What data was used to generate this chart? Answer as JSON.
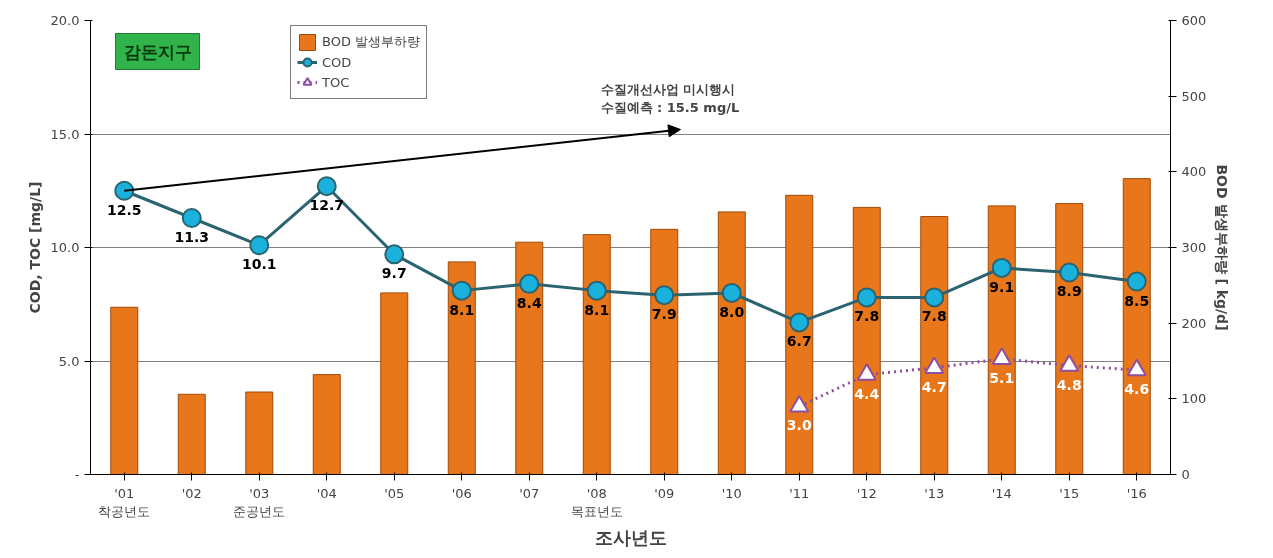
{
  "chart_data": {
    "type": "bar",
    "title": "감돈지구",
    "xlabel": "조사년도",
    "ylabel": "COD, TOC [mg/L]",
    "y2label": "BOD 발생부하량 [ kg/d]",
    "categories": [
      "'01\n착공년도",
      "'02",
      "'03\n준공년도",
      "'04",
      "'05",
      "'06",
      "'07",
      "'08\n목표년도",
      "'09",
      "'10",
      "'11",
      "'12",
      "'13",
      "'14",
      "'15",
      "'16"
    ],
    "series": [
      {
        "name": "BOD 발생부하량",
        "axis": "y2",
        "color": "#e8761a",
        "values": [
          221,
          106,
          109,
          132,
          240,
          281,
          307,
          317,
          324,
          347,
          369,
          353,
          341,
          355,
          358,
          391
        ]
      },
      {
        "name": "COD",
        "type": "line",
        "color": "#2b6470",
        "marker": "circle",
        "line_style": "solid",
        "values": [
          12.5,
          11.3,
          10.1,
          12.7,
          9.7,
          8.1,
          8.4,
          8.1,
          7.9,
          8.0,
          6.7,
          7.8,
          7.8,
          9.1,
          8.9,
          8.5
        ],
        "value_labels": [
          "12.5",
          "11.3",
          "10.1",
          "12.7",
          "9.7",
          "8.1",
          "8.4",
          "8.1",
          "7.9",
          "8.0",
          "6.7",
          "7.8",
          "7.8",
          "9.1",
          "8.9",
          "8.5"
        ]
      },
      {
        "name": "TOC",
        "type": "line",
        "color": "#8e4f9e",
        "marker": "triangle",
        "line_style": "dotted",
        "values": [
          null,
          null,
          null,
          null,
          null,
          null,
          null,
          null,
          null,
          null,
          3.0,
          4.4,
          4.7,
          5.1,
          4.8,
          4.6
        ],
        "value_labels": [
          null,
          null,
          null,
          null,
          null,
          null,
          null,
          null,
          null,
          null,
          "3.0",
          "4.4",
          "4.7",
          "5.1",
          "4.8",
          "4.6"
        ]
      }
    ],
    "ylim": [
      0,
      20
    ],
    "yticks": [
      {
        "value": 0,
        "label": "-"
      },
      {
        "value": 5,
        "label": "5.0"
      },
      {
        "value": 10,
        "label": "10.0"
      },
      {
        "value": 15,
        "label": "15.0"
      },
      {
        "value": 20,
        "label": "20.0"
      }
    ],
    "y2lim": [
      0,
      600
    ],
    "y2ticks": [
      0,
      100,
      200,
      300,
      400,
      500,
      600
    ],
    "grid": "y",
    "legend": "top left",
    "annotations": [
      "수질개선사업 미시행시\n수질예측 : 15.5 mg/L"
    ]
  }
}
